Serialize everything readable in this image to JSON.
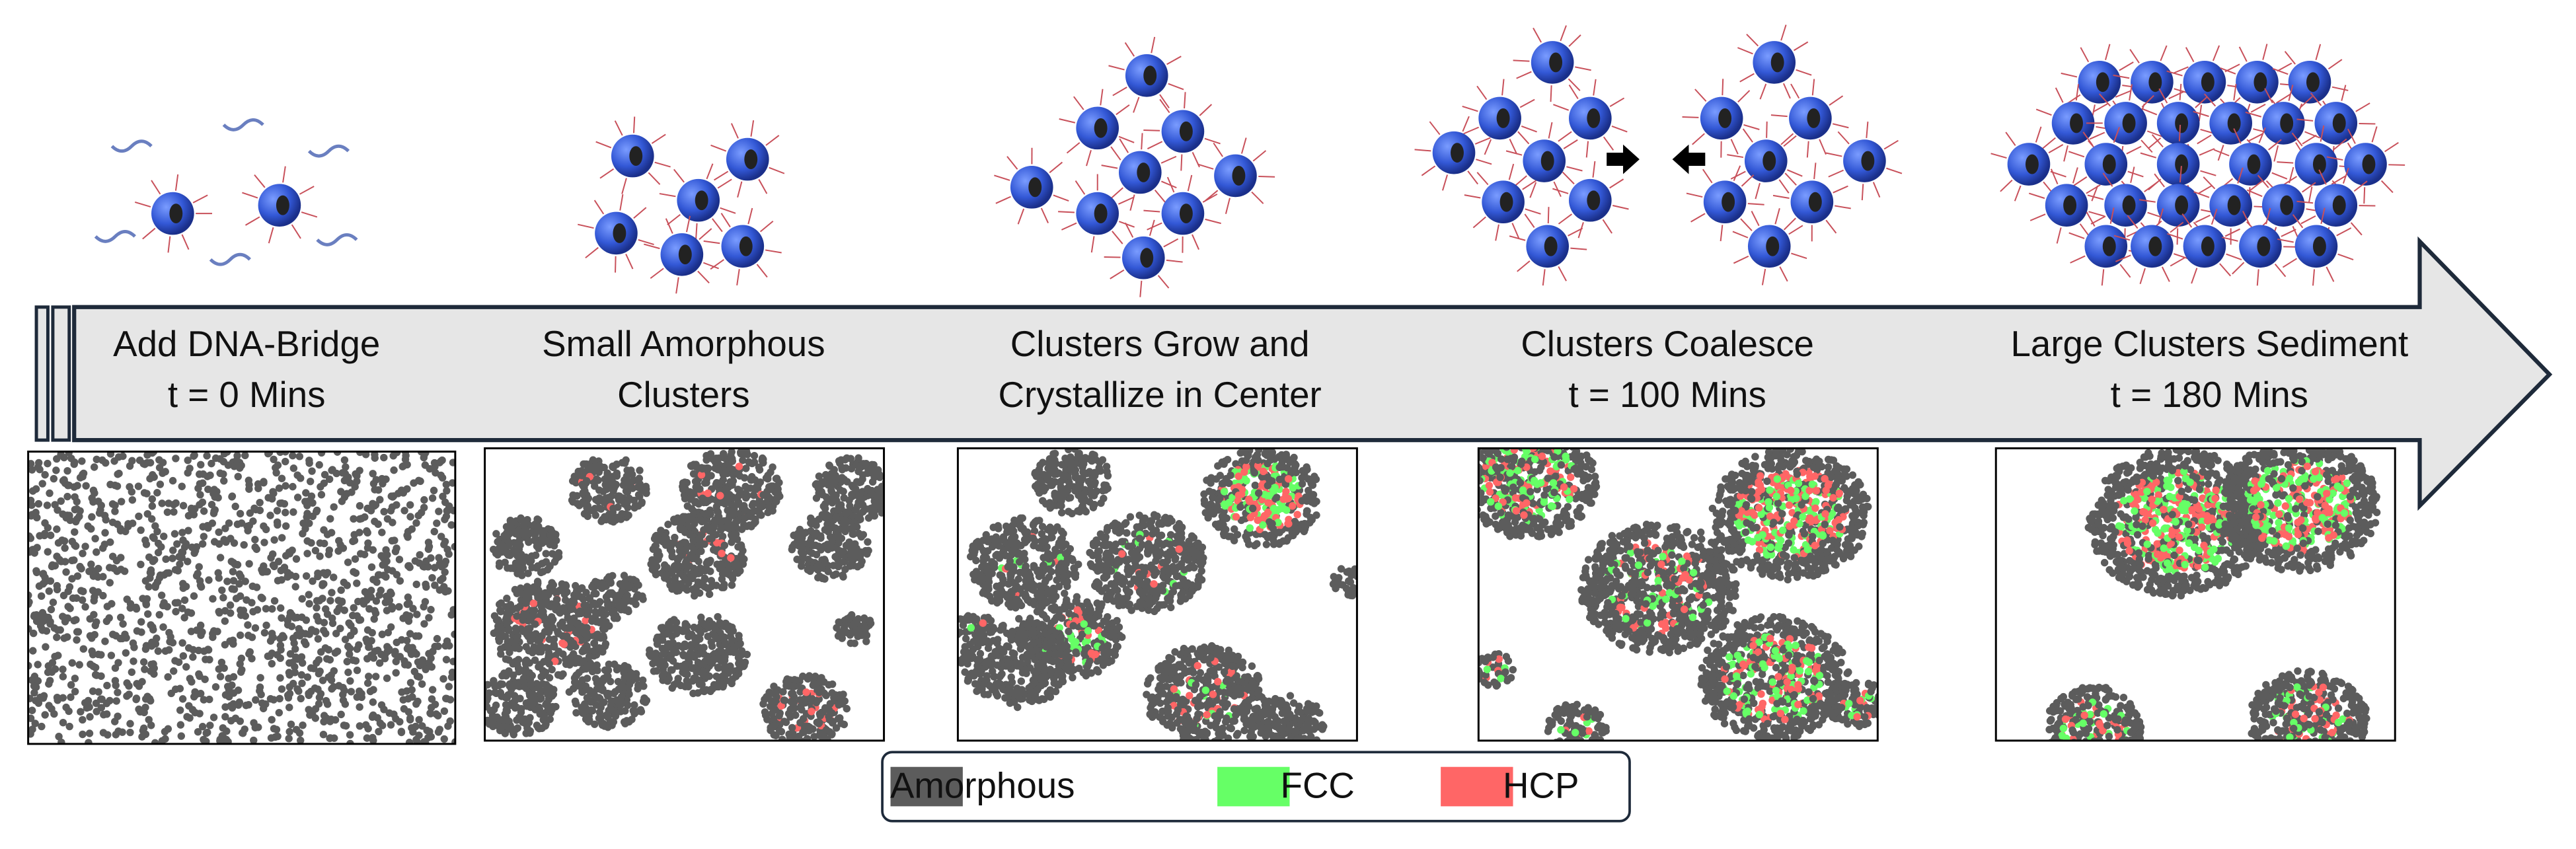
{
  "stages": [
    {
      "line1": "Add DNA-Bridge",
      "line2": "t = 0 Mins"
    },
    {
      "line1": "Small Amorphous",
      "line2": "Clusters"
    },
    {
      "line1": "Clusters Grow and",
      "line2": "Crystallize in Center"
    },
    {
      "line1": "Clusters Coalesce",
      "line2": "t = 100 Mins"
    },
    {
      "line1": "Large Clusters Sediment",
      "line2": "t = 180 Mins"
    }
  ],
  "legend": {
    "items": [
      {
        "label": "Amorphous",
        "color": "#5c5c5c"
      },
      {
        "label": "FCC",
        "color": "#66ff66"
      },
      {
        "label": "HCP",
        "color": "#ff6666"
      }
    ]
  }
}
